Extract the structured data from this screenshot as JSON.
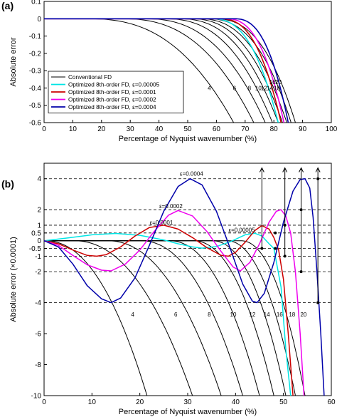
{
  "figure": {
    "panel_a_label": "(a)",
    "panel_b_label": "(b)"
  },
  "chart_data": [
    {
      "type": "line",
      "panel": "(a)",
      "xlabel": "Percentage of Nyquist wavenumber (%)",
      "ylabel": "Absolute error",
      "xlim": [
        0,
        100
      ],
      "ylim": [
        -0.6,
        0.1
      ],
      "xticks": [
        0,
        10,
        20,
        30,
        40,
        50,
        60,
        70,
        80,
        90,
        100
      ],
      "yticks": [
        0.1,
        0,
        -0.1,
        -0.2,
        -0.3,
        -0.4,
        -0.5,
        -0.6
      ],
      "grid": false,
      "legend_position": "lower-left",
      "legend": [
        {
          "label": "Conventional FD",
          "color": "#000000"
        },
        {
          "label": "Optimized 8th-order FD, ε=0.00005",
          "color": "#00e5e5"
        },
        {
          "label": "Optimized 8th-order FD, ε=0.0001",
          "color": "#cc0000"
        },
        {
          "label": "Optimized 8th-order FD, ε=0.0002",
          "color": "#ee00ee"
        },
        {
          "label": "Optimized 8th-order FD, ε=0.0004",
          "color": "#0000aa"
        }
      ],
      "conventional_curves": [
        {
          "order_label": "4",
          "x_at_zero": 14,
          "x_at_bottom": 66,
          "label_at": [
            57.5,
            -0.4
          ]
        },
        {
          "order_label": "6",
          "x_at_zero": 26,
          "x_at_bottom": 73,
          "label_at": [
            66.3,
            -0.4
          ]
        },
        {
          "order_label": "8",
          "x_at_zero": 34,
          "x_at_bottom": 77,
          "label_at": [
            71.5,
            -0.4
          ]
        },
        {
          "order_label": "10",
          "x_at_zero": 41,
          "x_at_bottom": 79.5,
          "label_at": [
            74.6,
            -0.4
          ]
        },
        {
          "order_label": "12",
          "x_at_zero": 46,
          "x_at_bottom": 81.5,
          "label_at": [
            76.6,
            -0.4
          ]
        },
        {
          "order_label": "14",
          "x_at_zero": 50,
          "x_at_bottom": 83,
          "label_at": [
            78.6,
            -0.4
          ]
        },
        {
          "order_label": "16",
          "x_at_zero": 53,
          "x_at_bottom": 84.5,
          "label_at": [
            79.5,
            -0.365
          ]
        },
        {
          "order_label": "18",
          "x_at_zero": 56,
          "x_at_bottom": 86,
          "label_at": [
            81.1,
            -0.4
          ]
        },
        {
          "order_label": "20",
          "x_at_zero": 58.5,
          "x_at_bottom": 87.5,
          "label_at": [
            81.6,
            -0.365
          ]
        }
      ],
      "optimized_curves": [
        {
          "epsilon": "0.00005",
          "color": "#00e5e5",
          "x_at_zero": 58,
          "x_at_bottom": 81.5
        },
        {
          "epsilon": "0.0001",
          "color": "#cc0000",
          "x_at_zero": 61,
          "x_at_bottom": 82.5
        },
        {
          "epsilon": "0.0002",
          "color": "#ee00ee",
          "x_at_zero": 63,
          "x_at_bottom": 83.5
        },
        {
          "epsilon": "0.0004",
          "color": "#0000aa",
          "x_at_zero": 66,
          "x_at_bottom": 85
        }
      ]
    },
    {
      "type": "line",
      "panel": "(b)",
      "xlabel": "Percentage of Nyquist wavenumber (%)",
      "ylabel": "Absolute error (×0.0001)",
      "xlim": [
        0,
        60
      ],
      "ylim": [
        -10,
        5
      ],
      "xticks": [
        0,
        10,
        20,
        30,
        40,
        50,
        60
      ],
      "yticks": [
        4,
        2,
        1,
        0.5,
        0,
        -0.5,
        -1,
        -2,
        -4,
        -6,
        -8,
        -10
      ],
      "ytick_labels": [
        "4",
        "2",
        "1",
        "0.5",
        "0",
        "-0.5",
        "-1",
        "-2",
        "-4",
        "-6",
        "-8",
        "-10"
      ],
      "grid": false,
      "dashed_reference_levels": [
        4,
        2,
        1,
        0.5,
        -0.5,
        -1,
        -2,
        -4
      ],
      "conventional_curves": [
        {
          "order_label": "4",
          "x_at_zero": 0,
          "x_at_bottom": 21.5,
          "label_at": [
            18.5,
            -4.9
          ]
        },
        {
          "order_label": "6",
          "x_at_zero": 6,
          "x_at_bottom": 31,
          "label_at": [
            27.5,
            -4.9
          ]
        },
        {
          "order_label": "8",
          "x_at_zero": 13,
          "x_at_bottom": 37,
          "label_at": [
            34.5,
            -4.9
          ]
        },
        {
          "order_label": "10",
          "x_at_zero": 20,
          "x_at_bottom": 41.5,
          "label_at": [
            39.5,
            -4.9
          ]
        },
        {
          "order_label": "12",
          "x_at_zero": 26,
          "x_at_bottom": 45,
          "label_at": [
            43.5,
            -4.9
          ]
        },
        {
          "order_label": "14",
          "x_at_zero": 31,
          "x_at_bottom": 48,
          "label_at": [
            46.5,
            -4.9
          ]
        },
        {
          "order_label": "16",
          "x_at_zero": 35,
          "x_at_bottom": 50.5,
          "label_at": [
            49.2,
            -4.9
          ]
        },
        {
          "order_label": "18",
          "x_at_zero": 38,
          "x_at_bottom": 52.5,
          "label_at": [
            51.8,
            -4.9
          ]
        },
        {
          "order_label": "20",
          "x_at_zero": 41,
          "x_at_bottom": 54.5,
          "label_at": [
            54.2,
            -4.9
          ]
        }
      ],
      "optimized_curves": [
        {
          "epsilon": "0.00005",
          "color": "#00e5e5",
          "annotation": "ε=0.00005",
          "annotation_at": [
            41.3,
            0.55
          ],
          "points": [
            [
              0,
              0
            ],
            [
              5,
              0.18
            ],
            [
              10,
              0.38
            ],
            [
              15,
              0.47
            ],
            [
              20,
              0.35
            ],
            [
              25,
              0.05
            ],
            [
              28,
              -0.2
            ],
            [
              31,
              -0.4
            ],
            [
              33,
              -0.48
            ],
            [
              36,
              -0.38
            ],
            [
              39,
              -0.05
            ],
            [
              42,
              0.38
            ],
            [
              44,
              0.48
            ],
            [
              45.5,
              0.3
            ],
            [
              47,
              -0.2
            ],
            [
              48,
              -0.5
            ],
            [
              49.5,
              -3
            ],
            [
              50.5,
              -7
            ],
            [
              51.5,
              -10
            ]
          ]
        },
        {
          "epsilon": "0.0001",
          "color": "#cc0000",
          "annotation": "ε=0.0001",
          "annotation_at": [
            24.5,
            1.05
          ],
          "points": [
            [
              0,
              0
            ],
            [
              3,
              -0.2
            ],
            [
              6,
              -0.6
            ],
            [
              9,
              -0.95
            ],
            [
              11,
              -1.0
            ],
            [
              13,
              -0.9
            ],
            [
              16,
              -0.4
            ],
            [
              19,
              0.3
            ],
            [
              22,
              0.85
            ],
            [
              25,
              1.0
            ],
            [
              28,
              0.75
            ],
            [
              31,
              0.2
            ],
            [
              34,
              -0.45
            ],
            [
              37,
              -0.95
            ],
            [
              38.5,
              -1.0
            ],
            [
              40,
              -0.75
            ],
            [
              42,
              -0.1
            ],
            [
              44,
              0.65
            ],
            [
              45.5,
              0.98
            ],
            [
              47,
              0.75
            ],
            [
              48,
              0.2
            ],
            [
              49,
              -0.6
            ],
            [
              50,
              -2.5
            ],
            [
              51,
              -6
            ],
            [
              52,
              -10
            ]
          ]
        },
        {
          "epsilon": "0.0002",
          "color": "#ee00ee",
          "annotation": "ε=0.0002",
          "annotation_at": [
            26.5,
            2.1
          ],
          "points": [
            [
              0,
              0
            ],
            [
              3,
              -0.3
            ],
            [
              6,
              -0.95
            ],
            [
              9,
              -1.55
            ],
            [
              12,
              -1.9
            ],
            [
              14,
              -1.95
            ],
            [
              17,
              -1.5
            ],
            [
              20,
              -0.6
            ],
            [
              23,
              0.6
            ],
            [
              26,
              1.65
            ],
            [
              28,
              1.95
            ],
            [
              31,
              1.6
            ],
            [
              34,
              0.6
            ],
            [
              37,
              -0.7
            ],
            [
              39.5,
              -1.7
            ],
            [
              41,
              -1.95
            ],
            [
              43,
              -1.4
            ],
            [
              45,
              -0.2
            ],
            [
              47,
              1.2
            ],
            [
              48.5,
              1.9
            ],
            [
              49.5,
              2.0
            ],
            [
              50.5,
              1.6
            ],
            [
              51.5,
              0.5
            ],
            [
              52.5,
              -2
            ],
            [
              53.5,
              -6
            ],
            [
              54.3,
              -10
            ]
          ]
        },
        {
          "epsilon": "0.0004",
          "color": "#0000aa",
          "annotation": "ε=0.0004",
          "annotation_at": [
            30.8,
            4.2
          ],
          "points": [
            [
              0,
              0
            ],
            [
              3,
              -0.4
            ],
            [
              6,
              -1.5
            ],
            [
              9,
              -2.9
            ],
            [
              12,
              -3.75
            ],
            [
              14,
              -4.0
            ],
            [
              16,
              -3.7
            ],
            [
              19,
              -2.4
            ],
            [
              22,
              -0.3
            ],
            [
              25,
              1.9
            ],
            [
              28,
              3.5
            ],
            [
              30.5,
              4.0
            ],
            [
              33,
              3.6
            ],
            [
              36,
              1.9
            ],
            [
              39,
              -0.6
            ],
            [
              41.5,
              -2.8
            ],
            [
              43.5,
              -3.9
            ],
            [
              44.5,
              -4.0
            ],
            [
              46,
              -3.4
            ],
            [
              48,
              -1.4
            ],
            [
              50,
              1.2
            ],
            [
              52,
              3.2
            ],
            [
              53.5,
              3.95
            ],
            [
              54.5,
              4.0
            ],
            [
              55.5,
              3.4
            ],
            [
              56.2,
              1.5
            ],
            [
              57,
              -2
            ],
            [
              57.8,
              -6
            ],
            [
              58.5,
              -10
            ]
          ]
        }
      ],
      "markers": [
        {
          "x": 45.5,
          "y": -0.5,
          "arrow_to": [
            45.5,
            4.7
          ]
        },
        {
          "x": 48.3,
          "y": -0.5
        },
        {
          "x": 48.3,
          "y": 0.5
        },
        {
          "x": 50.3,
          "y": -1,
          "arrow_to": [
            50.3,
            4.7
          ]
        },
        {
          "x": 50.3,
          "y": 1
        },
        {
          "x": 53.7,
          "y": -2,
          "arrow_to": [
            53.7,
            4.7
          ]
        },
        {
          "x": 53.7,
          "y": 2
        },
        {
          "x": 57.2,
          "y": -4,
          "arrow_to": [
            57.2,
            4.7
          ]
        },
        {
          "x": 57.2,
          "y": 4
        }
      ]
    }
  ]
}
